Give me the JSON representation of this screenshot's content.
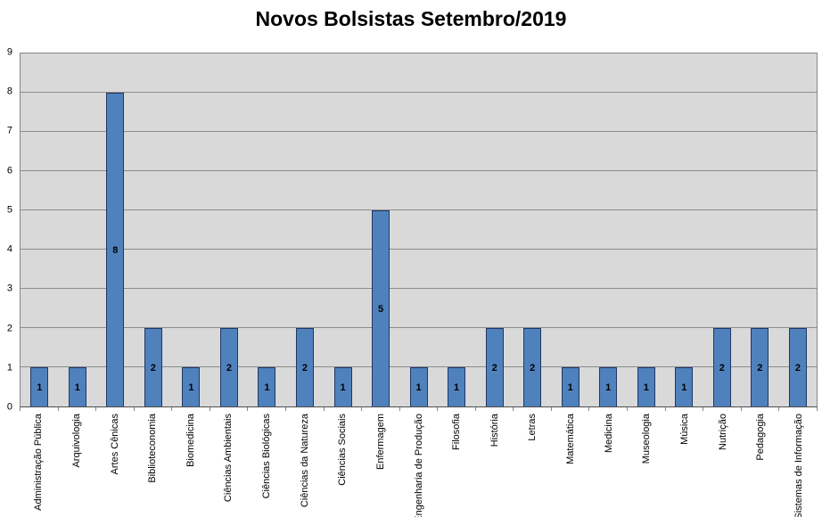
{
  "title": "Novos Bolsistas Setembro/2019",
  "colors": {
    "bar_fill": "#4F81BD",
    "bar_border": "#1F3864",
    "plot_background": "#D9D9D9",
    "gridline": "#8C8C8C",
    "text": "#000000"
  },
  "chart_data": {
    "type": "bar",
    "title": "Novos Bolsistas Setembro/2019",
    "xlabel": "",
    "ylabel": "",
    "ylim": [
      0,
      9
    ],
    "ytick_step": 1,
    "grid": true,
    "legend_position": "none",
    "data_labels_position": "center",
    "categories": [
      "Administração Pública",
      "Arquivologia",
      "Artes Cênicas",
      "Biblioteconomia",
      "Biomedicina",
      "Ciências Ambientais",
      "Ciências Biológicas",
      "Ciências da Natureza",
      "Ciências Sociais",
      "Enfermagem",
      "Engenharia de Produção",
      "Filosofia",
      "História",
      "Letras",
      "Matemática",
      "Medicina",
      "Museologia",
      "Música",
      "Nutrição",
      "Pedagogia",
      "Sistemas de Informação"
    ],
    "values": [
      1,
      1,
      8,
      2,
      1,
      2,
      1,
      2,
      1,
      5,
      1,
      1,
      2,
      2,
      1,
      1,
      1,
      1,
      2,
      2,
      2
    ]
  }
}
